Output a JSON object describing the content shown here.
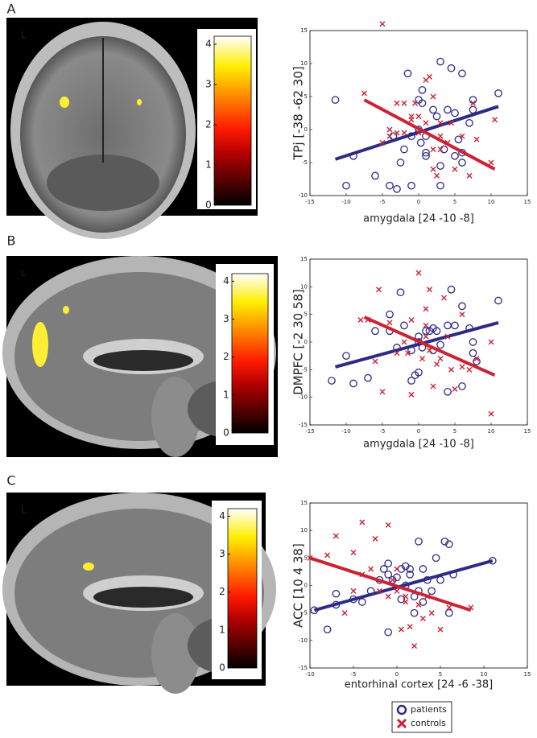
{
  "panels": [
    {
      "label": "A",
      "side_marker": "L",
      "colorbar": {
        "lim": [
          0,
          4.2
        ],
        "ticks": [
          0,
          1,
          2,
          3,
          4
        ]
      }
    },
    {
      "label": "B",
      "side_marker": "L",
      "colorbar": {
        "lim": [
          0,
          4.2
        ],
        "ticks": [
          0,
          1,
          2,
          3,
          4
        ]
      }
    },
    {
      "label": "C",
      "side_marker": "L",
      "colorbar": {
        "lim": [
          0,
          4.2
        ],
        "ticks": [
          0,
          1,
          2,
          3,
          4
        ]
      }
    }
  ],
  "chart_data": [
    {
      "type": "scatter",
      "x_label": "amygdala [24 -10 -8]",
      "y_label": "TPj [-38 -62 30]",
      "xlim": [
        -15,
        15
      ],
      "xticks": [
        -15,
        -10,
        -5,
        0,
        5,
        10,
        15
      ],
      "ylim": [
        -10,
        15
      ],
      "yticks": [
        -10,
        -5,
        0,
        5,
        10,
        15
      ],
      "series": [
        {
          "name": "patients",
          "color": "#2e2a85",
          "marker": "circle",
          "x": [
            -11.5,
            -10,
            -9,
            -6,
            -4,
            -3.5,
            -3,
            -2.5,
            -2,
            -1.5,
            -1,
            -1,
            0,
            0,
            0.5,
            0.5,
            0.3,
            1,
            1,
            1,
            2,
            2.5,
            3,
            3,
            3,
            3.5,
            4,
            4.5,
            5,
            5,
            5.5,
            6,
            6,
            6,
            7,
            7.5,
            7.5,
            11
          ],
          "y": [
            4.5,
            -8.5,
            -4,
            -7,
            -8.5,
            -1,
            -9,
            -5,
            -3,
            8.5,
            -8.5,
            -1,
            0,
            4.5,
            6,
            4,
            -2,
            -3.5,
            -1,
            -4,
            3,
            2,
            10.3,
            -5.5,
            -8.5,
            -3,
            3,
            9.3,
            2.5,
            -4,
            -1.5,
            8.5,
            -3.5,
            -5,
            1,
            3,
            4.5,
            5.5
          ],
          "fit": {
            "x": [
              -11.5,
              11
            ],
            "y": [
              -4.5,
              3.5
            ]
          }
        },
        {
          "name": "controls",
          "color": "#cc2233",
          "marker": "x",
          "x": [
            -7.5,
            -5,
            -5,
            -4,
            -4,
            -3,
            -3,
            -2,
            -1,
            -1,
            -0.5,
            0,
            0,
            1,
            1,
            1.5,
            2,
            2,
            2.5,
            3,
            3,
            4,
            4.5,
            5,
            6,
            7,
            7.5,
            8,
            10,
            10.5,
            2,
            -2,
            3
          ],
          "y": [
            5.5,
            16,
            -2,
            0,
            -1,
            4,
            -0.5,
            -0.5,
            1.5,
            2,
            4,
            2,
            -0.5,
            1,
            7.5,
            8,
            -3,
            -6,
            -7,
            -3,
            1,
            -2,
            1,
            -6,
            -1,
            -7,
            4,
            -1.5,
            -5,
            1.5,
            5,
            4,
            -1
          ],
          "fit": {
            "x": [
              -7.5,
              10.5
            ],
            "y": [
              4.5,
              -6
            ]
          }
        }
      ]
    },
    {
      "type": "scatter",
      "x_label": "amygdala [24 -10 -8]",
      "y_label": "DMPFC [-2 30 58]",
      "xlim": [
        -15,
        15
      ],
      "xticks": [
        -15,
        -10,
        -5,
        0,
        5,
        10,
        15
      ],
      "ylim": [
        -15,
        15
      ],
      "yticks": [
        -15,
        -10,
        -5,
        0,
        5,
        10,
        15
      ],
      "series": [
        {
          "name": "patients",
          "color": "#2e2a85",
          "marker": "circle",
          "x": [
            -12,
            -10,
            -9,
            -7,
            -6,
            -4,
            -4,
            -3,
            -2.5,
            -2,
            -1,
            -0.5,
            0,
            0,
            0,
            0.5,
            1,
            1.5,
            2,
            2,
            2.5,
            3,
            4,
            4,
            4.5,
            5,
            6,
            6,
            7,
            7.5,
            8,
            7.5,
            11,
            -1
          ],
          "y": [
            -7,
            -2.5,
            -7.5,
            -6.5,
            2,
            5,
            2,
            -1,
            9,
            3,
            -1.5,
            -6,
            -5.5,
            1,
            0,
            -1,
            2,
            2,
            2.5,
            -1.5,
            2,
            -0.5,
            3,
            -9,
            9.5,
            3,
            6.5,
            -8,
            2.5,
            -2,
            -3.5,
            0,
            7.5,
            -7
          ],
          "fit": {
            "x": [
              -11.5,
              11
            ],
            "y": [
              -4.5,
              3.5
            ]
          }
        },
        {
          "name": "controls",
          "color": "#cc2233",
          "marker": "x",
          "x": [
            -8,
            -6,
            -5.5,
            -5,
            -4,
            -3,
            -2,
            -1.5,
            -1,
            -1,
            0,
            0.5,
            1,
            1,
            1.5,
            1.5,
            2,
            2.5,
            3,
            3.5,
            4,
            4.5,
            5,
            6,
            6,
            7,
            8,
            10,
            10,
            -7,
            1
          ],
          "y": [
            4,
            -3.5,
            9.5,
            -9,
            3.5,
            -2,
            0,
            -2,
            4,
            -9.5,
            12.5,
            -3,
            3,
            1,
            9.5,
            -1.5,
            -8,
            -4,
            -3,
            8,
            1,
            -5,
            -8.5,
            -4.5,
            5,
            -5,
            -3,
            0,
            -13,
            4,
            6
          ],
          "fit": {
            "x": [
              -7.5,
              10.5
            ],
            "y": [
              4.5,
              -6
            ]
          }
        }
      ]
    },
    {
      "type": "scatter",
      "x_label": "entorhinal cortex [24 -6 -38]",
      "y_label": "ACC [10 4 38]",
      "xlim": [
        -10,
        15
      ],
      "xticks": [
        -10,
        -5,
        0,
        5,
        10,
        15
      ],
      "ylim": [
        -15,
        15
      ],
      "yticks": [
        -15,
        -10,
        -5,
        0,
        5,
        10,
        15
      ],
      "series": [
        {
          "name": "patients",
          "color": "#2e2a85",
          "marker": "circle",
          "x": [
            -9.5,
            -8,
            -7,
            -7,
            -5,
            -4,
            -3,
            -2,
            -1.5,
            -1,
            -1,
            -1,
            -0.5,
            0,
            0.5,
            1,
            1,
            1.5,
            1.5,
            2,
            2,
            2.5,
            3,
            3,
            3.5,
            4,
            4.5,
            5,
            5.5,
            6,
            6,
            6.5,
            11,
            0.5,
            2.5
          ],
          "y": [
            -4.5,
            -8,
            -3.5,
            -1.5,
            -2.5,
            -3,
            -1,
            1,
            3,
            4,
            2,
            -8.5,
            1,
            1.5,
            3,
            3.5,
            0,
            3,
            2,
            -2,
            -5,
            8,
            3,
            -3,
            1,
            -1,
            5,
            1,
            8,
            7.5,
            -5,
            2,
            4.5,
            -2.5,
            -1
          ],
          "fit": {
            "x": [
              -9.5,
              11
            ],
            "y": [
              -4.5,
              4.5
            ]
          }
        },
        {
          "name": "controls",
          "color": "#cc2233",
          "marker": "x",
          "x": [
            -10,
            -8,
            -7,
            -6,
            -5,
            -4,
            -4,
            -3,
            -2.5,
            -2,
            -1,
            -1,
            -0.5,
            0,
            0,
            0.5,
            1,
            1.5,
            2,
            2.5,
            3,
            3.5,
            4,
            5,
            6,
            8.5,
            -5,
            1
          ],
          "y": [
            5,
            5.5,
            9,
            -5,
            -1,
            11.5,
            2,
            3,
            8.5,
            -1,
            11,
            -2,
            1,
            -1,
            3,
            -8,
            -2,
            -7.5,
            -11,
            -3.5,
            -6,
            -2,
            -5,
            -8,
            -4,
            -4,
            6,
            -3
          ],
          "fit": {
            "x": [
              -10,
              8.5
            ],
            "y": [
              5,
              -4.5
            ]
          }
        }
      ]
    }
  ]
}
